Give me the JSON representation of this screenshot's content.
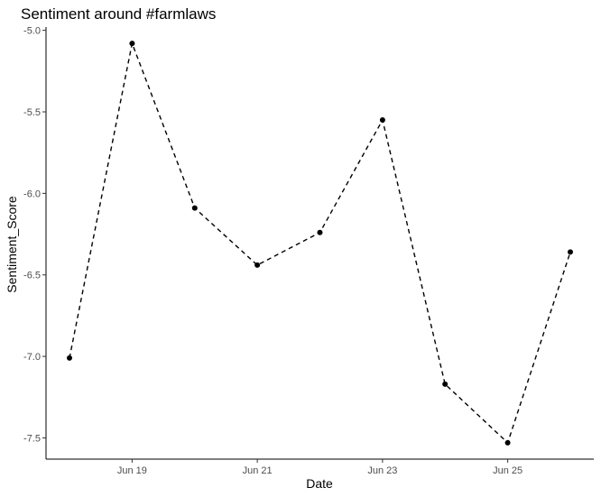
{
  "chart_data": {
    "type": "line",
    "title": "Sentiment around #farmlaws",
    "xlabel": "Date",
    "ylabel": "Sentiment_Score",
    "x": [
      "2021-06-18",
      "2021-06-19",
      "2021-06-20",
      "2021-06-21",
      "2021-06-22",
      "2021-06-23",
      "2021-06-24",
      "2021-06-25",
      "2021-06-26"
    ],
    "y": [
      -7.01,
      -5.08,
      -6.09,
      -6.44,
      -6.24,
      -5.55,
      -7.17,
      -7.53,
      -6.36
    ],
    "x_ticks": [
      {
        "date": "2021-06-19",
        "label": "Jun 19"
      },
      {
        "date": "2021-06-21",
        "label": "Jun 21"
      },
      {
        "date": "2021-06-23",
        "label": "Jun 23"
      },
      {
        "date": "2021-06-25",
        "label": "Jun 25"
      }
    ],
    "y_ticks": [
      {
        "value": -5.0,
        "label": "-5.0"
      },
      {
        "value": -5.5,
        "label": "-5.5"
      },
      {
        "value": -6.0,
        "label": "-6.0"
      },
      {
        "value": -6.5,
        "label": "-6.5"
      },
      {
        "value": -7.0,
        "label": "-7.0"
      },
      {
        "value": -7.5,
        "label": "-7.5"
      }
    ],
    "xlim": [
      "2021-06-17T15:00",
      "2021-06-26T09:00"
    ],
    "ylim": [
      -7.63,
      -4.98
    ],
    "grid": false,
    "line_style": "dashed",
    "marker": "circle",
    "colors": {
      "line": "#000000",
      "points": "#000000",
      "axis": "#000000"
    }
  }
}
